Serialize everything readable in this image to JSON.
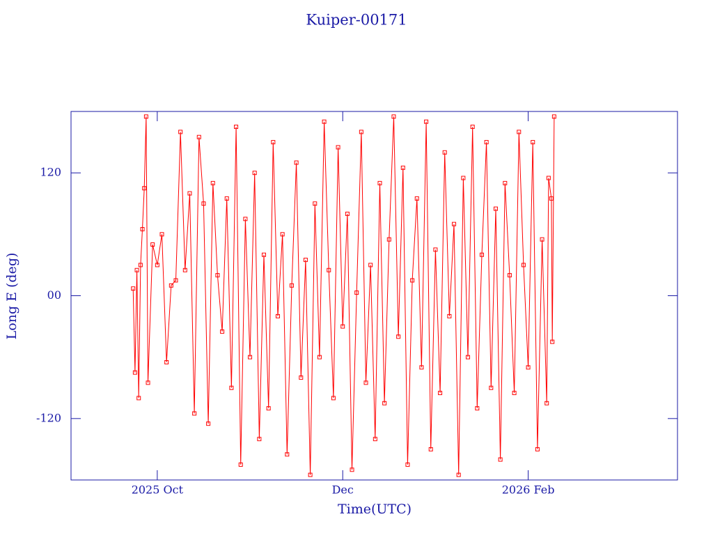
{
  "chart_data": {
    "type": "line",
    "title": "Kuiper-00171",
    "xlabel": "Time(UTC)",
    "ylabel": "Long E (deg)",
    "xlim": [
      9.07,
      15.61
    ],
    "xticks": [
      {
        "value": 10,
        "label": "2025 Oct"
      },
      {
        "value": 12,
        "label": "Dec"
      },
      {
        "value": 14,
        "label": "2026 Feb"
      }
    ],
    "ylim": [
      -180,
      180
    ],
    "yticks": [
      -120,
      {
        "value": 0,
        "label": "00"
      },
      120
    ],
    "grid": false,
    "markers": true,
    "series": [
      {
        "color": "#ff0000",
        "x": [
          9.74,
          9.76,
          9.78,
          9.8,
          9.82,
          9.84,
          9.86,
          9.88,
          9.9,
          9.95,
          10.0,
          10.05,
          10.1,
          10.15,
          10.2,
          10.25,
          10.3,
          10.35,
          10.4,
          10.45,
          10.5,
          10.55,
          10.6,
          10.65,
          10.7,
          10.75,
          10.8,
          10.85,
          10.9,
          10.95,
          11.0,
          11.05,
          11.1,
          11.15,
          11.2,
          11.25,
          11.3,
          11.35,
          11.4,
          11.45,
          11.5,
          11.55,
          11.6,
          11.65,
          11.7,
          11.75,
          11.8,
          11.85,
          11.9,
          11.95,
          12.0,
          12.05,
          12.1,
          12.15,
          12.2,
          12.25,
          12.3,
          12.35,
          12.4,
          12.45,
          12.5,
          12.55,
          12.6,
          12.65,
          12.7,
          12.75,
          12.8,
          12.85,
          12.9,
          12.95,
          13.0,
          13.05,
          13.1,
          13.15,
          13.2,
          13.25,
          13.3,
          13.35,
          13.4,
          13.45,
          13.5,
          13.55,
          13.6,
          13.65,
          13.7,
          13.75,
          13.8,
          13.85,
          13.9,
          13.95,
          14.0,
          14.05,
          14.1,
          14.15,
          14.2,
          14.22,
          14.25,
          14.26,
          14.28
        ],
        "values": [
          7,
          -75,
          25,
          -100,
          30,
          65,
          105,
          175,
          -85,
          50,
          30,
          60,
          -65,
          10,
          15,
          160,
          25,
          100,
          -115,
          155,
          90,
          -125,
          110,
          20,
          -35,
          95,
          -90,
          165,
          -165,
          75,
          -60,
          120,
          -140,
          40,
          -110,
          150,
          -20,
          60,
          -155,
          10,
          130,
          -80,
          35,
          -175,
          90,
          -60,
          170,
          25,
          -100,
          145,
          -30,
          80,
          -170,
          3,
          160,
          -85,
          30,
          -140,
          110,
          -105,
          55,
          175,
          -40,
          125,
          -165,
          15,
          95,
          -70,
          170,
          -150,
          45,
          -95,
          140,
          -20,
          70,
          -175,
          115,
          -60,
          165,
          -110,
          40,
          150,
          -90,
          85,
          -160,
          110,
          20,
          -95,
          160,
          30,
          -70,
          150,
          -150,
          55,
          -105,
          115,
          95,
          -45,
          175
        ]
      }
    ]
  }
}
